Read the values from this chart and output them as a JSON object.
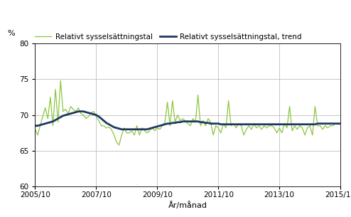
{
  "ylabel": "%",
  "xlabel": "År/månad",
  "ylim": [
    60,
    80
  ],
  "yticks": [
    60,
    65,
    70,
    75,
    80
  ],
  "legend_labels": [
    "Relativt sysselsättningstal",
    "Relativt sysselsättningstal, trend"
  ],
  "line_color": "#8dc63f",
  "trend_color": "#1f3864",
  "xtick_labels": [
    "2005/10",
    "2007/10",
    "2009/10",
    "2011/10",
    "2013/10",
    "2015/10"
  ],
  "xtick_positions": [
    0,
    24,
    48,
    72,
    96,
    120
  ],
  "n_points": 121,
  "series": [
    68.0,
    67.2,
    68.5,
    69.8,
    71.0,
    69.5,
    72.5,
    68.5,
    73.6,
    69.0,
    74.8,
    70.5,
    70.8,
    70.2,
    71.2,
    70.8,
    70.5,
    71.0,
    70.2,
    70.0,
    69.5,
    69.8,
    70.3,
    70.5,
    69.8,
    69.2,
    68.5,
    68.5,
    68.2,
    68.3,
    68.0,
    67.2,
    66.2,
    65.8,
    67.2,
    68.2,
    67.5,
    67.5,
    67.8,
    67.2,
    68.5,
    67.2,
    68.2,
    67.8,
    67.5,
    67.8,
    68.2,
    67.8,
    68.2,
    68.0,
    68.5,
    69.0,
    71.8,
    68.5,
    72.0,
    69.0,
    70.0,
    69.2,
    69.5,
    69.2,
    68.8,
    68.5,
    69.5,
    69.0,
    72.8,
    68.5,
    69.2,
    68.5,
    69.5,
    69.0,
    67.2,
    68.5,
    68.2,
    67.5,
    68.8,
    68.2,
    72.0,
    68.5,
    68.8,
    68.2,
    68.8,
    68.5,
    67.2,
    68.0,
    68.5,
    68.0,
    68.8,
    68.2,
    68.5,
    68.0,
    68.5,
    68.2,
    68.5,
    68.5,
    68.2,
    67.5,
    68.2,
    67.5,
    68.8,
    68.2,
    71.2,
    67.8,
    68.5,
    68.0,
    68.5,
    68.2,
    67.2,
    68.2,
    68.5,
    67.2,
    71.2,
    68.5,
    68.5,
    68.0,
    68.5,
    68.2,
    68.5,
    68.5,
    68.8,
    68.8,
    68.8
  ],
  "trend": [
    68.5,
    68.5,
    68.6,
    68.7,
    68.8,
    68.9,
    69.0,
    69.1,
    69.3,
    69.5,
    69.7,
    69.9,
    70.0,
    70.1,
    70.2,
    70.3,
    70.4,
    70.5,
    70.5,
    70.5,
    70.4,
    70.3,
    70.2,
    70.1,
    70.0,
    69.8,
    69.5,
    69.2,
    68.9,
    68.7,
    68.5,
    68.3,
    68.2,
    68.1,
    68.0,
    68.0,
    68.0,
    68.0,
    68.0,
    68.0,
    68.0,
    68.0,
    68.0,
    68.0,
    68.0,
    68.1,
    68.2,
    68.3,
    68.4,
    68.5,
    68.6,
    68.7,
    68.8,
    68.8,
    68.9,
    68.9,
    69.0,
    69.0,
    69.1,
    69.1,
    69.1,
    69.1,
    69.1,
    69.1,
    69.1,
    69.0,
    69.0,
    68.9,
    68.9,
    68.8,
    68.8,
    68.8,
    68.8,
    68.7,
    68.7,
    68.7,
    68.7,
    68.7,
    68.7,
    68.7,
    68.7,
    68.7,
    68.7,
    68.7,
    68.7,
    68.7,
    68.7,
    68.7,
    68.7,
    68.7,
    68.7,
    68.7,
    68.7,
    68.7,
    68.7,
    68.7,
    68.7,
    68.7,
    68.7,
    68.7,
    68.7,
    68.7,
    68.7,
    68.7,
    68.7,
    68.7,
    68.7,
    68.7,
    68.7,
    68.7,
    68.7,
    68.8,
    68.8,
    68.8,
    68.8,
    68.8,
    68.8,
    68.8,
    68.8,
    68.8,
    68.8
  ]
}
